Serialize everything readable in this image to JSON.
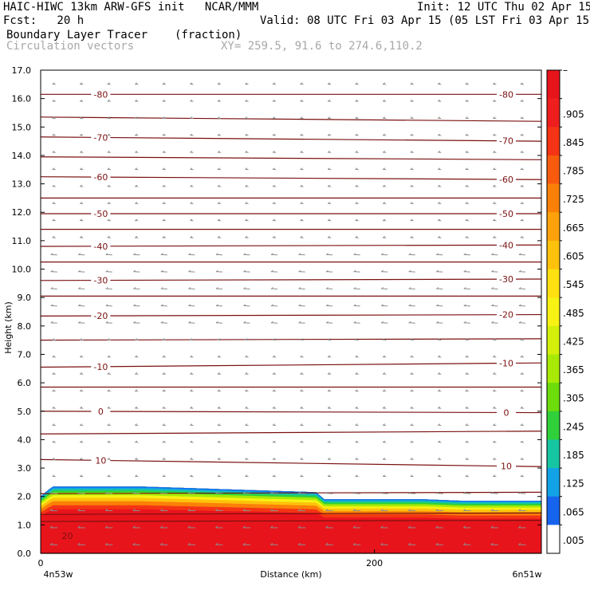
{
  "header": {
    "title": "HAIC-HIWC 13km ARW-GFS init   NCAR/MMM",
    "init": "Init: 12 UTC Thu 02 Apr 15",
    "fcst": "Fcst:   20 h",
    "valid": "Valid: 08 UTC Fri 03 Apr 15 (05 LST Fri 03 Apr 15)",
    "field": "Boundary Layer Tracer",
    "units": "(fraction)",
    "vectors": "Circulation vectors",
    "xy": "XY= 259.5, 91.6 to 274.6,110.2"
  },
  "chart_data": {
    "type": "heatmap",
    "title": "Boundary Layer Tracer",
    "units": "(fraction)",
    "xlabel": "Distance (km)",
    "ylabel": "Height (km)",
    "xlim": [
      0,
      300
    ],
    "ylim": [
      0,
      17
    ],
    "x_ticks": [
      {
        "value": 0,
        "label": "0"
      },
      {
        "value": 200,
        "label": "200"
      }
    ],
    "x_end_labels": {
      "left": "4n53w",
      "right": "6n51w"
    },
    "y_ticks": [
      "0.0",
      "1.0",
      "2.0",
      "3.0",
      "4.0",
      "5.0",
      "6.0",
      "7.0",
      "8.0",
      "9.0",
      "10.0",
      "11.0",
      "12.0",
      "13.0",
      "14.0",
      "15.0",
      "16.0",
      "17.0"
    ],
    "colorbar": {
      "labels": [
        "–",
        ".905",
        ".845",
        ".785",
        ".725",
        ".665",
        ".605",
        ".545",
        ".485",
        ".425",
        ".365",
        ".305",
        ".245",
        ".185",
        ".125",
        ".065",
        ".005"
      ],
      "colors": [
        "#e8141c",
        "#ee1e1e",
        "#f43414",
        "#f85a0e",
        "#fb8008",
        "#fda20a",
        "#ffc20c",
        "#ffe010",
        "#f8f214",
        "#d4f00a",
        "#a8ea06",
        "#6cdc0a",
        "#30d03a",
        "#16c6a2",
        "#12a2e6",
        "#1664ee",
        "#ffffff"
      ]
    },
    "tracer_top_km": [
      {
        "x": 0,
        "top": 2.0
      },
      {
        "x": 7,
        "top": 2.35
      },
      {
        "x": 60,
        "top": 2.35
      },
      {
        "x": 165,
        "top": 2.15
      },
      {
        "x": 170,
        "top": 1.9
      },
      {
        "x": 230,
        "top": 1.9
      },
      {
        "x": 252,
        "top": 1.85
      },
      {
        "x": 300,
        "top": 1.85
      }
    ],
    "contour_lines_km": [
      {
        "heights": [
          0.0,
          0.0
        ],
        "label": null
      },
      {
        "heights": [
          1.12,
          1.16
        ],
        "label": null
      },
      {
        "heights": [
          1.37,
          1.42
        ],
        "label": null
      },
      {
        "heights": [
          2.1,
          2.15
        ],
        "label": null
      },
      {
        "heights": [
          3.3,
          3.05
        ],
        "label": "10"
      },
      {
        "heights": [
          4.2,
          4.3
        ],
        "label": null
      },
      {
        "heights": [
          5.0,
          4.95
        ],
        "label": "0"
      },
      {
        "heights": [
          5.85,
          5.85
        ],
        "label": null
      },
      {
        "heights": [
          6.55,
          6.7
        ],
        "label": "-10"
      },
      {
        "heights": [
          7.5,
          7.55
        ],
        "label": null
      },
      {
        "heights": [
          8.35,
          8.4
        ],
        "label": "-20"
      },
      {
        "heights": [
          9.05,
          9.05
        ],
        "label": null
      },
      {
        "heights": [
          9.6,
          9.65
        ],
        "label": "-30"
      },
      {
        "heights": [
          10.25,
          10.25
        ],
        "label": null
      },
      {
        "heights": [
          10.8,
          10.85
        ],
        "label": "-40"
      },
      {
        "heights": [
          11.4,
          11.4
        ],
        "label": null
      },
      {
        "heights": [
          11.95,
          11.95
        ],
        "label": "-50"
      },
      {
        "heights": [
          12.5,
          12.5
        ],
        "label": null
      },
      {
        "heights": [
          13.25,
          13.15
        ],
        "label": "-60"
      },
      {
        "heights": [
          13.95,
          13.85
        ],
        "label": null
      },
      {
        "heights": [
          14.65,
          14.5
        ],
        "label": "-70"
      },
      {
        "heights": [
          15.35,
          15.2
        ],
        "label": null
      },
      {
        "heights": [
          16.15,
          16.15
        ],
        "label": "-80"
      }
    ],
    "low_label": "20",
    "grid": false,
    "legend": "right colorbar"
  },
  "colors": {
    "contour": "#7a1010",
    "vector": "#8c8c8c",
    "frame": "#000000"
  }
}
